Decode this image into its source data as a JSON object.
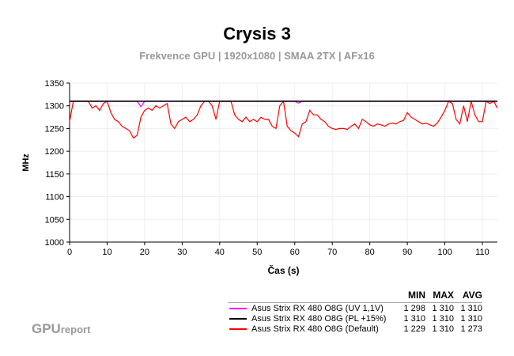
{
  "chart_data": {
    "type": "line",
    "title": "Crysis 3",
    "subtitle": "Frekvence GPU | 1920x1080 | SMAA 2TX | AFx16",
    "xlabel": "Čas (s)",
    "ylabel": "MHz",
    "xlim": [
      0,
      114
    ],
    "ylim": [
      1000,
      1350
    ],
    "xticks": [
      0,
      10,
      20,
      30,
      40,
      50,
      60,
      70,
      80,
      90,
      100,
      110
    ],
    "yticks": [
      1000,
      1050,
      1100,
      1150,
      1200,
      1250,
      1300,
      1350
    ],
    "grid": true,
    "legend_placement": "bottom-right",
    "legend_headers": [
      "MIN",
      "MAX",
      "AVG"
    ],
    "series": [
      {
        "name": "Asus Strix RX 480 O8G (UV 1,1V)",
        "color": "#ff00ff",
        "min": "1 298",
        "max": "1 310",
        "avg": "1 310",
        "x": [
          0,
          18,
          19,
          20,
          60,
          61,
          62,
          114
        ],
        "y": [
          1310,
          1310,
          1298,
          1310,
          1310,
          1306,
          1310,
          1310
        ]
      },
      {
        "name": "Asus Strix RX 480 O8G (PL +15%)",
        "color": "#000000",
        "min": "1 310",
        "max": "1 310",
        "avg": "1 310",
        "x": [
          0,
          114
        ],
        "y": [
          1310,
          1310
        ]
      },
      {
        "name": "Asus Strix RX 480 O8G (Default)",
        "color": "#ff0000",
        "min": "1 229",
        "max": "1 310",
        "avg": "1 273",
        "x": [
          0,
          1,
          2,
          3,
          4,
          5,
          6,
          7,
          8,
          9,
          10,
          11,
          12,
          13,
          14,
          15,
          16,
          17,
          18,
          19,
          20,
          21,
          22,
          23,
          24,
          25,
          26,
          27,
          28,
          29,
          30,
          31,
          32,
          33,
          34,
          35,
          36,
          37,
          38,
          39,
          40,
          41,
          42,
          43,
          44,
          45,
          46,
          47,
          48,
          49,
          50,
          51,
          52,
          53,
          54,
          55,
          56,
          57,
          58,
          59,
          60,
          61,
          62,
          63,
          64,
          65,
          66,
          67,
          68,
          69,
          70,
          71,
          72,
          73,
          74,
          75,
          76,
          77,
          78,
          79,
          80,
          81,
          82,
          83,
          84,
          85,
          86,
          87,
          88,
          89,
          90,
          91,
          92,
          93,
          94,
          95,
          96,
          97,
          98,
          99,
          100,
          101,
          102,
          103,
          104,
          105,
          106,
          107,
          108,
          109,
          110,
          111,
          112,
          113,
          114
        ],
        "y": [
          1265,
          1310,
          1310,
          1310,
          1310,
          1310,
          1295,
          1300,
          1290,
          1305,
          1310,
          1285,
          1270,
          1265,
          1255,
          1250,
          1245,
          1229,
          1235,
          1275,
          1290,
          1295,
          1290,
          1300,
          1295,
          1300,
          1305,
          1260,
          1250,
          1265,
          1270,
          1275,
          1265,
          1270,
          1280,
          1300,
          1310,
          1310,
          1300,
          1270,
          1310,
          1310,
          1310,
          1310,
          1280,
          1270,
          1265,
          1275,
          1265,
          1270,
          1265,
          1275,
          1270,
          1270,
          1255,
          1250,
          1300,
          1310,
          1255,
          1245,
          1240,
          1232,
          1260,
          1265,
          1290,
          1280,
          1280,
          1270,
          1265,
          1255,
          1250,
          1248,
          1250,
          1250,
          1248,
          1255,
          1260,
          1250,
          1270,
          1265,
          1258,
          1255,
          1260,
          1258,
          1255,
          1260,
          1262,
          1260,
          1265,
          1268,
          1285,
          1275,
          1270,
          1265,
          1260,
          1262,
          1258,
          1255,
          1262,
          1275,
          1290,
          1310,
          1305,
          1270,
          1260,
          1300,
          1265,
          1310,
          1280,
          1265,
          1265,
          1310,
          1305,
          1310,
          1295
        ]
      }
    ]
  },
  "logo": {
    "main": "GPU",
    "suffix": "report"
  }
}
